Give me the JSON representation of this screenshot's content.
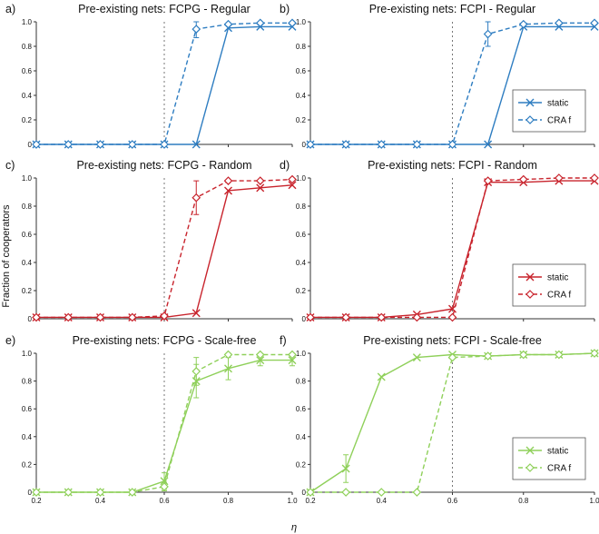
{
  "figure": {
    "ylabel": "Fraction of cooperators",
    "xlabel": "η"
  },
  "chart_data": [
    {
      "type": "line",
      "panel_label": "a)",
      "title": "Pre-existing nets: FCPG - Regular",
      "xlim": [
        0.2,
        1.0
      ],
      "ylim": [
        0,
        1.0
      ],
      "xticks": [
        "0.2",
        "0.4",
        "0.6",
        "0.8",
        "1.0"
      ],
      "show_xticks": false,
      "yticks": [
        "0",
        "0.2",
        "0.4",
        "0.6",
        "0.8",
        "1.0"
      ],
      "color": "#2e7dc1",
      "vline": 0.6,
      "legend": false,
      "series": [
        {
          "name": "static",
          "marker": "x",
          "dash": false,
          "x": [
            0.2,
            0.3,
            0.4,
            0.5,
            0.6,
            0.7,
            0.8,
            0.9,
            1.0
          ],
          "y": [
            0,
            0,
            0,
            0,
            0,
            0,
            0.95,
            0.96,
            0.96
          ],
          "err": [
            0,
            0,
            0,
            0,
            0,
            0,
            0,
            0,
            0
          ]
        },
        {
          "name": "CRA f",
          "marker": "diamond",
          "dash": true,
          "x": [
            0.2,
            0.3,
            0.4,
            0.5,
            0.6,
            0.7,
            0.8,
            0.9,
            1.0
          ],
          "y": [
            0,
            0,
            0,
            0,
            0,
            0.94,
            0.98,
            0.99,
            0.99
          ],
          "err": [
            0,
            0,
            0,
            0,
            0,
            0.07,
            0,
            0,
            0
          ]
        }
      ]
    },
    {
      "type": "line",
      "panel_label": "b)",
      "title": "Pre-existing nets: FCPI - Regular",
      "xlim": [
        0.2,
        1.0
      ],
      "ylim": [
        0,
        1.0
      ],
      "xticks": [
        "0.2",
        "0.4",
        "0.6",
        "0.8",
        "1.0"
      ],
      "show_xticks": false,
      "yticks": [
        "0",
        "0.2",
        "0.4",
        "0.6",
        "0.8",
        "1.0"
      ],
      "color": "#2e7dc1",
      "vline": 0.6,
      "legend": true,
      "series": [
        {
          "name": "static",
          "marker": "x",
          "dash": false,
          "x": [
            0.2,
            0.3,
            0.4,
            0.5,
            0.6,
            0.7,
            0.8,
            0.9,
            1.0
          ],
          "y": [
            0,
            0,
            0,
            0,
            0,
            0,
            0.96,
            0.96,
            0.96
          ],
          "err": [
            0,
            0,
            0,
            0,
            0,
            0,
            0,
            0,
            0
          ]
        },
        {
          "name": "CRA f",
          "marker": "diamond",
          "dash": true,
          "x": [
            0.2,
            0.3,
            0.4,
            0.5,
            0.6,
            0.7,
            0.8,
            0.9,
            1.0
          ],
          "y": [
            0,
            0,
            0,
            0,
            0,
            0.9,
            0.98,
            0.99,
            0.99
          ],
          "err": [
            0,
            0,
            0,
            0,
            0,
            0.1,
            0,
            0,
            0
          ]
        }
      ]
    },
    {
      "type": "line",
      "panel_label": "c)",
      "title": "Pre-existing nets: FCPG - Random",
      "xlim": [
        0.2,
        1.0
      ],
      "ylim": [
        0,
        1.0
      ],
      "xticks": [
        "0.2",
        "0.4",
        "0.6",
        "0.8",
        "1.0"
      ],
      "show_xticks": false,
      "yticks": [
        "0",
        "0.2",
        "0.4",
        "0.6",
        "0.8",
        "1.0"
      ],
      "color": "#c8232c",
      "vline": 0.6,
      "legend": false,
      "series": [
        {
          "name": "static",
          "marker": "x",
          "dash": false,
          "x": [
            0.2,
            0.3,
            0.4,
            0.5,
            0.6,
            0.7,
            0.8,
            0.9,
            1.0
          ],
          "y": [
            0.01,
            0.01,
            0.01,
            0.01,
            0.01,
            0.04,
            0.91,
            0.93,
            0.95
          ],
          "err": [
            0,
            0,
            0,
            0,
            0,
            0,
            0,
            0,
            0
          ]
        },
        {
          "name": "CRA f",
          "marker": "diamond",
          "dash": true,
          "x": [
            0.2,
            0.3,
            0.4,
            0.5,
            0.6,
            0.7,
            0.8,
            0.9,
            1.0
          ],
          "y": [
            0.01,
            0.01,
            0.01,
            0.01,
            0.02,
            0.86,
            0.98,
            0.98,
            0.99
          ],
          "err": [
            0,
            0,
            0,
            0,
            0,
            0.12,
            0,
            0,
            0
          ]
        }
      ]
    },
    {
      "type": "line",
      "panel_label": "d)",
      "title": "Pre-existing nets: FCPI - Random",
      "xlim": [
        0.2,
        1.0
      ],
      "ylim": [
        0,
        1.0
      ],
      "xticks": [
        "0.2",
        "0.4",
        "0.6",
        "0.8",
        "1.0"
      ],
      "show_xticks": false,
      "yticks": [
        "0",
        "0.2",
        "0.4",
        "0.6",
        "0.8",
        "1.0"
      ],
      "color": "#c8232c",
      "vline": 0.6,
      "legend": true,
      "series": [
        {
          "name": "static",
          "marker": "x",
          "dash": false,
          "x": [
            0.2,
            0.3,
            0.4,
            0.5,
            0.6,
            0.7,
            0.8,
            0.9,
            1.0
          ],
          "y": [
            0.01,
            0.01,
            0.01,
            0.03,
            0.07,
            0.97,
            0.97,
            0.98,
            0.98
          ],
          "err": [
            0,
            0,
            0,
            0,
            0,
            0,
            0,
            0,
            0
          ]
        },
        {
          "name": "CRA f",
          "marker": "diamond",
          "dash": true,
          "x": [
            0.2,
            0.3,
            0.4,
            0.5,
            0.6,
            0.7,
            0.8,
            0.9,
            1.0
          ],
          "y": [
            0.01,
            0.01,
            0.01,
            0.01,
            0.01,
            0.98,
            0.99,
            1.0,
            1.0
          ],
          "err": [
            0,
            0,
            0,
            0,
            0,
            0,
            0,
            0,
            0
          ]
        }
      ]
    },
    {
      "type": "line",
      "panel_label": "e)",
      "title": "Pre-existing nets: FCPG - Scale-free",
      "xlim": [
        0.2,
        1.0
      ],
      "ylim": [
        0,
        1.0
      ],
      "xticks": [
        "0.2",
        "0.4",
        "0.6",
        "0.8",
        "1.0"
      ],
      "show_xticks": true,
      "yticks": [
        "0",
        "0.2",
        "0.4",
        "0.6",
        "0.8",
        "1.0"
      ],
      "color": "#8fd05a",
      "vline": 0.6,
      "legend": false,
      "series": [
        {
          "name": "static",
          "marker": "x",
          "dash": false,
          "x": [
            0.2,
            0.3,
            0.4,
            0.5,
            0.6,
            0.7,
            0.8,
            0.9,
            1.0
          ],
          "y": [
            0,
            0,
            0,
            0,
            0.08,
            0.8,
            0.89,
            0.95,
            0.95
          ],
          "err": [
            0,
            0,
            0,
            0,
            0.06,
            0.12,
            0.08,
            0.04,
            0.04
          ]
        },
        {
          "name": "CRA f",
          "marker": "diamond",
          "dash": true,
          "x": [
            0.2,
            0.3,
            0.4,
            0.5,
            0.6,
            0.7,
            0.8,
            0.9,
            1.0
          ],
          "y": [
            0,
            0,
            0,
            0,
            0.04,
            0.87,
            0.99,
            0.99,
            0.99
          ],
          "err": [
            0,
            0,
            0,
            0,
            0.03,
            0.1,
            0,
            0,
            0
          ]
        }
      ]
    },
    {
      "type": "line",
      "panel_label": "f)",
      "title": "Pre-existing nets: FCPI - Scale-free",
      "xlim": [
        0.2,
        1.0
      ],
      "ylim": [
        0,
        1.0
      ],
      "xticks": [
        "0.2",
        "0.4",
        "0.6",
        "0.8",
        "1.0"
      ],
      "show_xticks": true,
      "yticks": [
        "0",
        "0.2",
        "0.4",
        "0.6",
        "0.8",
        "1.0"
      ],
      "color": "#8fd05a",
      "vline": 0.6,
      "legend": true,
      "series": [
        {
          "name": "static",
          "marker": "x",
          "dash": false,
          "x": [
            0.2,
            0.3,
            0.4,
            0.5,
            0.6,
            0.7,
            0.8,
            0.9,
            1.0
          ],
          "y": [
            0,
            0.17,
            0.83,
            0.97,
            0.99,
            0.98,
            0.99,
            0.99,
            1.0
          ],
          "err": [
            0,
            0.1,
            0,
            0,
            0,
            0,
            0,
            0,
            0
          ]
        },
        {
          "name": "CRA f",
          "marker": "diamond",
          "dash": true,
          "x": [
            0.2,
            0.3,
            0.4,
            0.5,
            0.6,
            0.7,
            0.8,
            0.9,
            1.0
          ],
          "y": [
            0,
            0,
            0,
            0,
            0.97,
            0.98,
            0.99,
            0.99,
            1.0
          ],
          "err": [
            0,
            0,
            0,
            0,
            0,
            0,
            0,
            0,
            0
          ]
        }
      ]
    }
  ]
}
